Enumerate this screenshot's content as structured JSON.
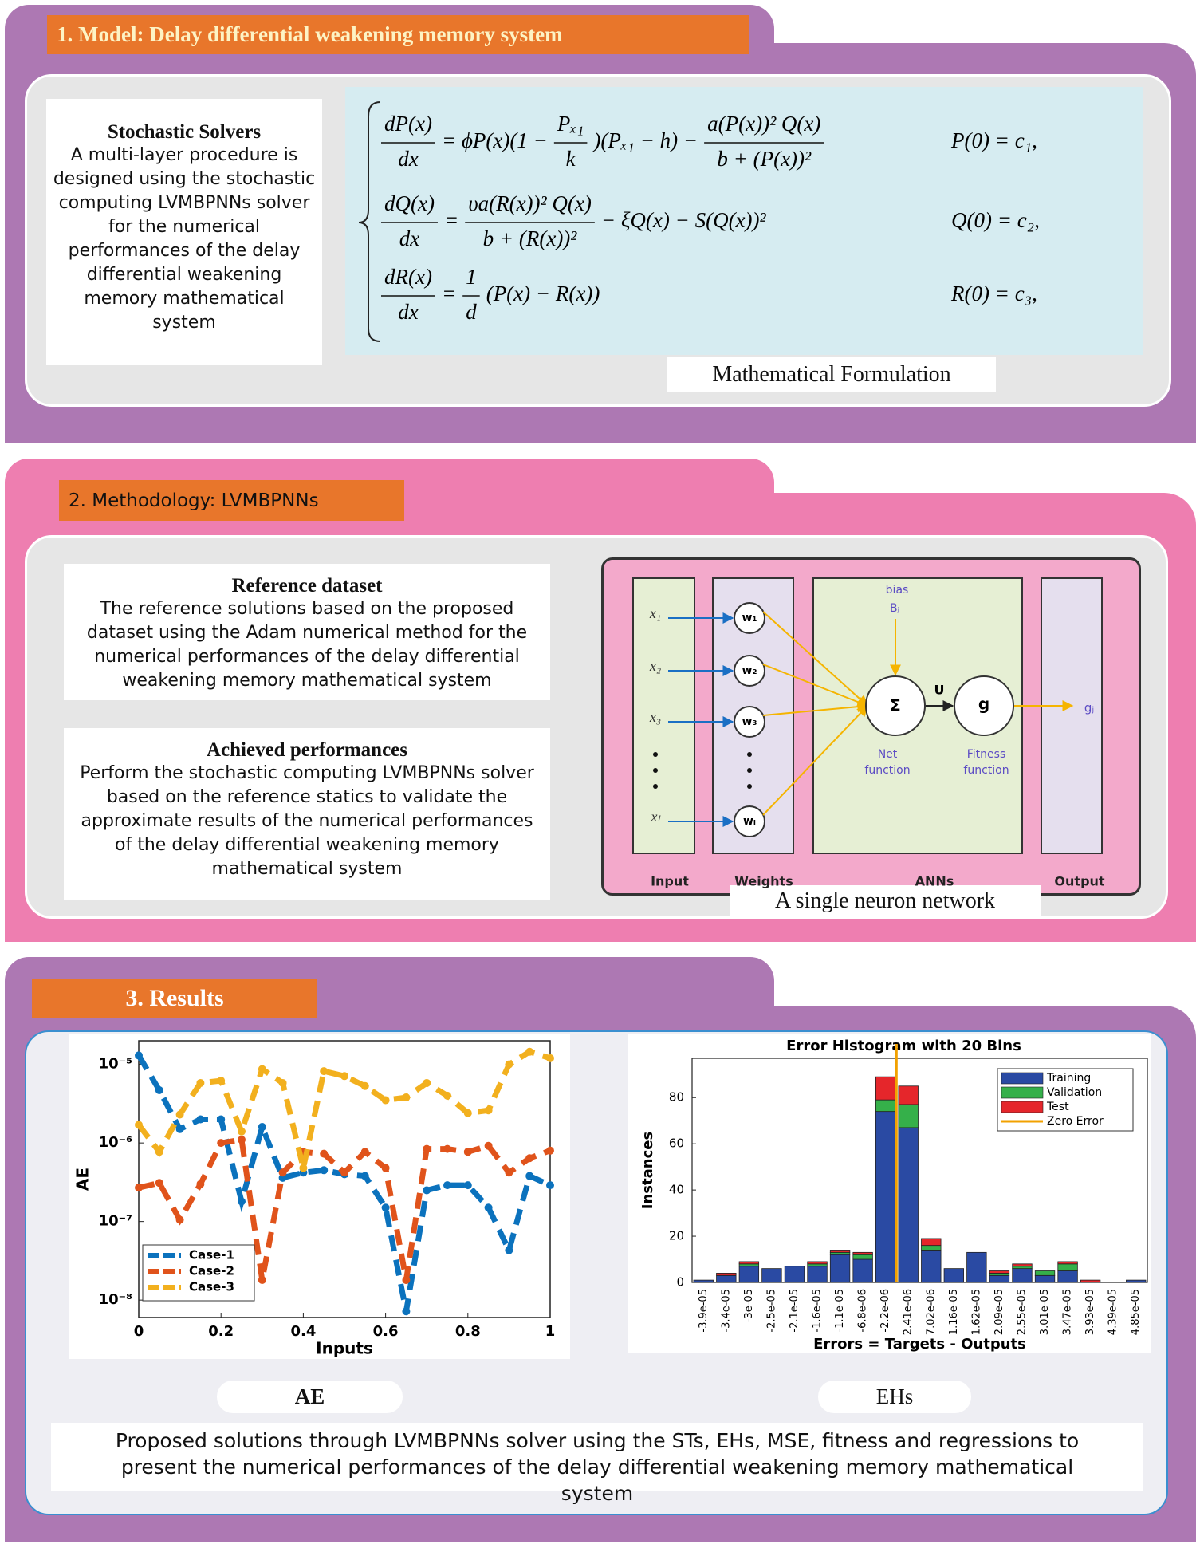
{
  "sections": {
    "section1": {
      "title": "1. Model: Delay differential weakening memory system",
      "solvers": {
        "heading": "Stochastic Solvers",
        "text": "A multi-layer procedure is designed using the stochastic computing LVMBPNNs solver for the numerical performances of the delay differential weakening memory mathematical system"
      },
      "equations": [
        {
          "pieces": [
            {
              "num": "dP(x)",
              "den": "dx"
            },
            "= ϕP(x)(1 −",
            {
              "num": "Pₓ₁",
              "den": "k"
            },
            ")(Pₓ₁ − h) −",
            {
              "num": "a(P(x))² Q(x)",
              "den": "b + (P(x))²"
            }
          ],
          "initial": "P(0) = c₁,"
        },
        {
          "pieces": [
            {
              "num": "dQ(x)",
              "den": "dx"
            },
            "=",
            {
              "num": "υa(R(x))² Q(x)",
              "den": "b + (R(x))²"
            },
            "− ξQ(x) − S(Q(x))²"
          ],
          "initial": "Q(0) = c₂,"
        },
        {
          "pieces": [
            {
              "num": "dR(x)",
              "den": "dx"
            },
            "=",
            {
              "num": "1",
              "den": "d"
            },
            "(P(x) − R(x))"
          ],
          "initial": "R(0) = c₃,"
        }
      ],
      "caption": "Mathematical Formulation"
    },
    "section2": {
      "title": "2. Methodology: LVMBPNNs",
      "reference": {
        "heading": "Reference dataset",
        "text": "The reference solutions based on the proposed dataset using the Adam numerical method for the numerical performances of the delay differential weakening memory mathematical system"
      },
      "achieved": {
        "heading": "Achieved performances",
        "text": "Perform the stochastic computing LVMBPNNs solver based on the reference statics to validate the approximate results of the numerical performances of the delay differential weakening memory mathematical system"
      },
      "network": {
        "inputs": [
          "x₁",
          "x₂",
          "x₃",
          "xₗ"
        ],
        "weights": [
          "w₁",
          "w₂",
          "w₃",
          "wₗ"
        ],
        "bias": "bias",
        "bias_symbol": "Bⱼ",
        "sum": "Σ",
        "u": "U",
        "activation": "g",
        "output": "gⱼ",
        "net_function": [
          "Net",
          "function"
        ],
        "fitness_function": [
          "Fitness",
          "function"
        ],
        "columns": [
          "Input",
          "Weights",
          "ANNs",
          "Output"
        ],
        "caption": "A single neuron network"
      }
    },
    "section3": {
      "title": "3. Results",
      "ae_caption": "AE",
      "eh_caption": "EHs",
      "summary": "Proposed solutions through LVMBPNNs solver using the STs, EHs, MSE, fitness and regressions to present the numerical performances of the delay differential weakening memory mathematical system"
    }
  },
  "chart_data": [
    {
      "type": "line",
      "ylabel": "AE",
      "xlabel": "Inputs",
      "x": [
        0,
        0.05,
        0.1,
        0.15,
        0.2,
        0.25,
        0.3,
        0.35,
        0.4,
        0.45,
        0.5,
        0.55,
        0.6,
        0.65,
        0.7,
        0.75,
        0.8,
        0.85,
        0.9,
        0.95,
        1
      ],
      "series": [
        {
          "name": "Case-1",
          "color": "#0b72bd",
          "values": [
            1.3e-05,
            4.7e-06,
            1.5e-06,
            2e-06,
            2e-06,
            1.8e-07,
            1.6e-06,
            3.6e-07,
            4.2e-07,
            4.5e-07,
            4e-07,
            3.8e-07,
            1.5e-07,
            7.2e-09,
            2.5e-07,
            2.9e-07,
            2.9e-07,
            1.5e-07,
            4.3e-08,
            3.8e-07,
            2.9e-07
          ]
        },
        {
          "name": "Case-2",
          "color": "#e0531b",
          "values": [
            2.7e-07,
            3.1e-07,
            1.05e-07,
            3e-07,
            1e-06,
            1.1e-06,
            1.8e-08,
            4.2e-07,
            7.7e-07,
            7.3e-07,
            4.2e-07,
            7.7e-07,
            4.8e-07,
            1.8e-08,
            8.4e-07,
            8.4e-07,
            7.7e-07,
            9.2e-07,
            4.2e-07,
            6.4e-07,
            8e-07
          ]
        },
        {
          "name": "Case-3",
          "color": "#f2b01e",
          "values": [
            1.7e-06,
            7.7e-07,
            2.3e-06,
            5.8e-06,
            6.2e-06,
            1.4e-06,
            8.7e-06,
            5.8e-06,
            4.8e-07,
            8.2e-06,
            7.1e-06,
            5.3e-06,
            3.5e-06,
            3.8e-06,
            5.8e-06,
            4e-06,
            2.4e-06,
            2.6e-06,
            1e-05,
            1.45e-05,
            1.2e-05
          ]
        }
      ],
      "xlim": [
        0,
        1
      ],
      "xticks": [
        0,
        0.2,
        0.4,
        0.6,
        0.8,
        1
      ],
      "yscale": "log",
      "ylim": [
        6e-09,
        2e-05
      ],
      "yticks": [
        {
          "value": 1e-05,
          "label": "10⁻⁵"
        },
        {
          "value": 1e-06,
          "label": "10⁻⁶"
        },
        {
          "value": 1e-07,
          "label": "10⁻⁷"
        },
        {
          "value": 1e-08,
          "label": "10⁻⁸"
        }
      ],
      "legend": "lower left",
      "grid": false
    },
    {
      "type": "stacked_bar",
      "title": "Error Histogram with 20 Bins",
      "ylabel": "Instances",
      "xlabel": "Errors = Targets - Outputs",
      "categories": [
        "-3.9e-05",
        "-3.4e-05",
        "-3e-05",
        "-2.5e-05",
        "-2.1e-05",
        "-1.6e-05",
        "-1.1e-05",
        "-6.8e-06",
        "-2.2e-06",
        "2.41e-06",
        "7.02e-06",
        "1.16e-05",
        "1.62e-05",
        "2.09e-05",
        "2.55e-05",
        "3.01e-05",
        "3.47e-05",
        "3.93e-05",
        "4.39e-05",
        "4.85e-05"
      ],
      "series": [
        {
          "name": "Training",
          "color": "#2a4aa3",
          "values": [
            1,
            3,
            7,
            6,
            7,
            7,
            12,
            10,
            74,
            67,
            14,
            6,
            13,
            3,
            6,
            3,
            5,
            0,
            0,
            1
          ]
        },
        {
          "name": "Validation",
          "color": "#35b04a",
          "values": [
            0,
            0,
            1,
            0,
            0,
            1,
            1,
            2,
            5,
            10,
            2,
            0,
            0,
            1,
            1,
            2,
            3,
            0,
            0,
            0
          ]
        },
        {
          "name": "Test",
          "color": "#e5262b",
          "values": [
            0,
            1,
            1,
            0,
            0,
            1,
            1,
            1,
            10,
            8,
            3,
            0,
            0,
            1,
            1,
            0,
            1,
            1,
            0,
            0
          ]
        }
      ],
      "reference_line": {
        "name": "Zero Error",
        "color": "#f2a100",
        "value": 0
      },
      "ylim": [
        0,
        97
      ],
      "yticks": [
        0,
        20,
        40,
        60,
        80
      ],
      "legend": "upper right",
      "grid": false
    }
  ]
}
